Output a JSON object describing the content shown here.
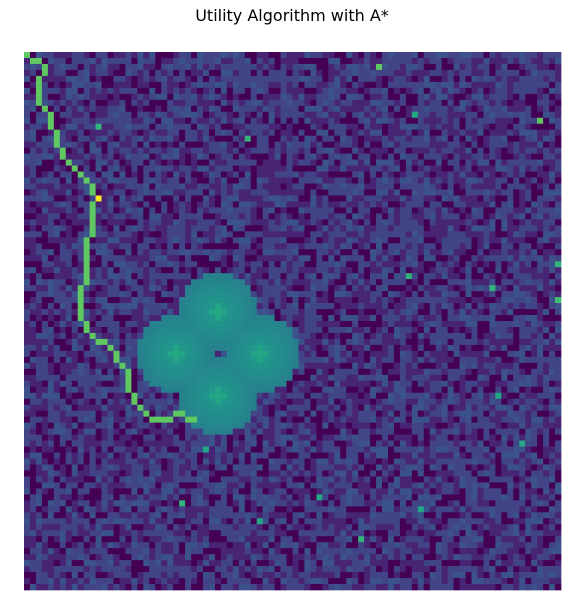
{
  "chart_data": {
    "type": "heatmap",
    "title": "Utility Algorithm with A*",
    "xlabel": "",
    "ylabel": "",
    "axes_visible": false,
    "grid": false,
    "legend": "none",
    "colormap": "viridis",
    "grid_size": [
      90,
      90
    ],
    "value_range": [
      0,
      1
    ],
    "background": {
      "distribution": "random noise",
      "levels": [
        0.0,
        0.1,
        0.2,
        0.25
      ],
      "seed": 7
    },
    "influence_sources": [
      {
        "row": 43,
        "col": 32,
        "peak": 0.55,
        "radius": 6.5
      },
      {
        "row": 50,
        "col": 25,
        "peak": 0.55,
        "radius": 6.5
      },
      {
        "row": 50,
        "col": 39,
        "peak": 0.55,
        "radius": 6.5
      },
      {
        "row": 57,
        "col": 32,
        "peak": 0.55,
        "radius": 6.5
      }
    ],
    "path": {
      "value": 0.75,
      "highlight": {
        "row": 24,
        "col": 12,
        "value": 1.0
      },
      "start": {
        "row": 0,
        "col": 0
      },
      "end": {
        "row": 61,
        "col": 28
      },
      "waypoints": [
        [
          0,
          0
        ],
        [
          1,
          2
        ],
        [
          3,
          3
        ],
        [
          5,
          2
        ],
        [
          8,
          2
        ],
        [
          12,
          4
        ],
        [
          15,
          5
        ],
        [
          17,
          6
        ],
        [
          19,
          8
        ],
        [
          21,
          10
        ],
        [
          23,
          11
        ],
        [
          24,
          12
        ],
        [
          26,
          11
        ],
        [
          30,
          11
        ],
        [
          34,
          10
        ],
        [
          38,
          10
        ],
        [
          41,
          9
        ],
        [
          44,
          9
        ],
        [
          46,
          10
        ],
        [
          48,
          13
        ],
        [
          51,
          15
        ],
        [
          53,
          17
        ],
        [
          56,
          17
        ],
        [
          58,
          18
        ],
        [
          61,
          21
        ],
        [
          61,
          24
        ],
        [
          60,
          26
        ],
        [
          61,
          28
        ]
      ]
    },
    "scattered_cells": [
      {
        "row": 2,
        "col": 59,
        "value": 0.75
      },
      {
        "row": 10,
        "col": 65,
        "value": 0.6
      },
      {
        "row": 11,
        "col": 86,
        "value": 0.75
      },
      {
        "row": 12,
        "col": 12,
        "value": 0.65
      },
      {
        "row": 14,
        "col": 37,
        "value": 0.65
      },
      {
        "row": 35,
        "col": 89,
        "value": 0.65
      },
      {
        "row": 37,
        "col": 64,
        "value": 0.65
      },
      {
        "row": 39,
        "col": 78,
        "value": 0.65
      },
      {
        "row": 41,
        "col": 89,
        "value": 0.7
      },
      {
        "row": 50,
        "col": 32,
        "value": 0.1
      },
      {
        "row": 50,
        "col": 33,
        "value": 0.25
      },
      {
        "row": 57,
        "col": 79,
        "value": 0.6
      },
      {
        "row": 65,
        "col": 83,
        "value": 0.6
      },
      {
        "row": 66,
        "col": 30,
        "value": 0.6
      },
      {
        "row": 74,
        "col": 49,
        "value": 0.6
      },
      {
        "row": 75,
        "col": 26,
        "value": 0.65
      },
      {
        "row": 76,
        "col": 66,
        "value": 0.6
      },
      {
        "row": 78,
        "col": 39,
        "value": 0.6
      },
      {
        "row": 81,
        "col": 56,
        "value": 0.65
      }
    ]
  }
}
